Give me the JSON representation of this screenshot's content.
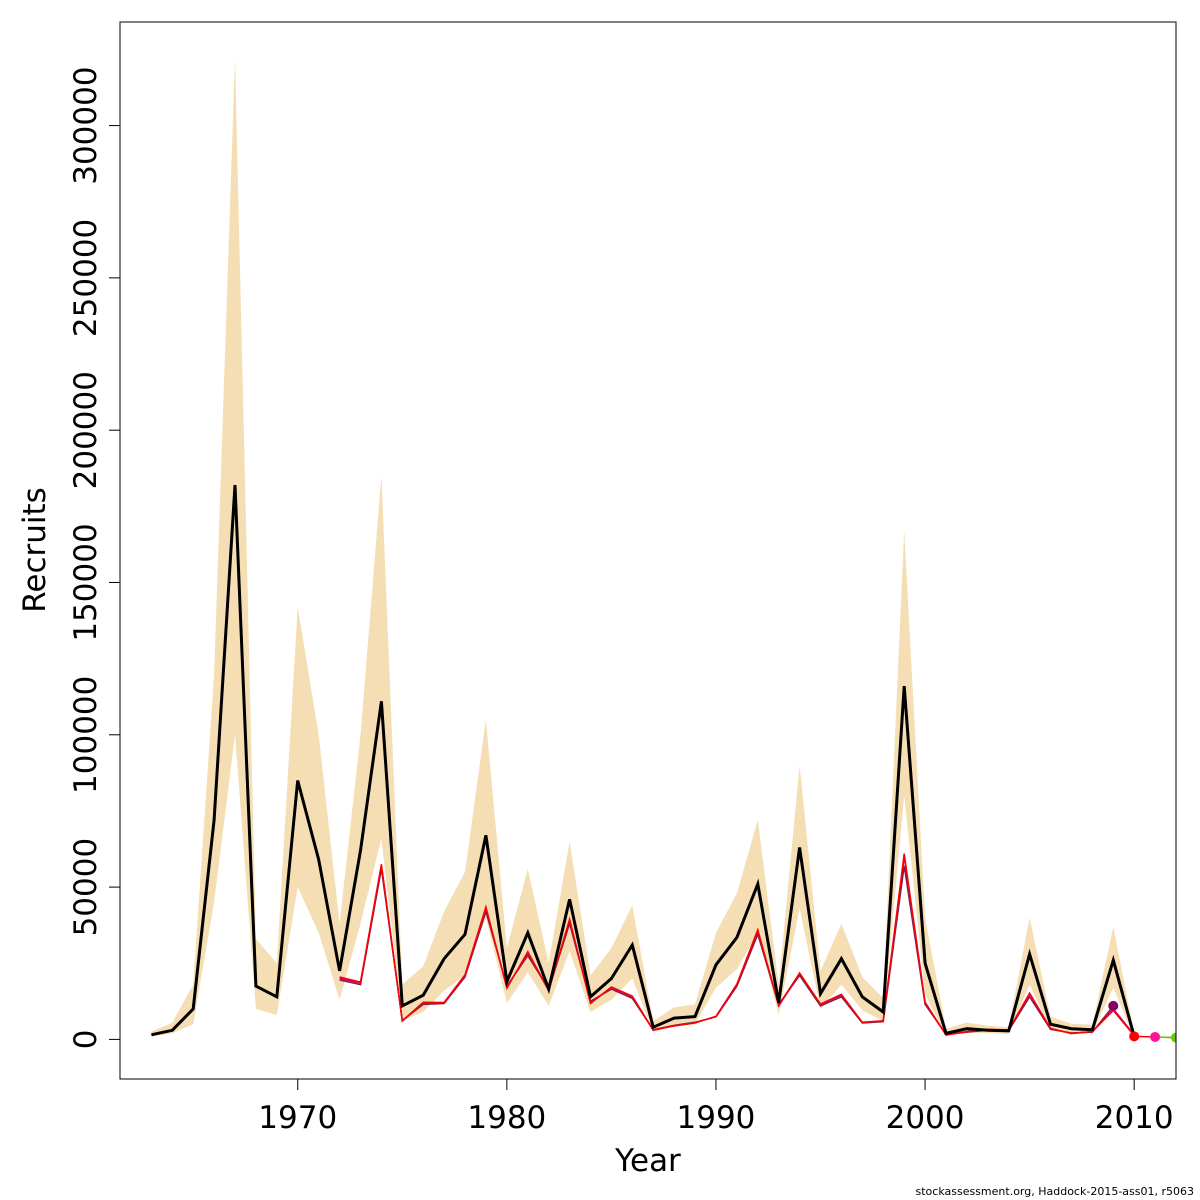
{
  "colors": {
    "ci_band": "#f5deb3",
    "main_line": "#000000",
    "retro_a": "#d1006a",
    "retro_b": "#8b1a4a",
    "retro_c": "#ff0000",
    "dot_2009": "#8b0063",
    "dot_2010": "#ff0000",
    "dot_2011": "#ff1493",
    "dot_2012": "#66cc00"
  },
  "footer": "stockassessment.org, Haddock-2015-ass01, r5063",
  "chart_data": {
    "type": "line",
    "xlabel": "Year",
    "ylabel": "Recruits",
    "xlim": [
      1961.5,
      2012
    ],
    "ylim": [
      -13000,
      334000
    ],
    "x_ticks": [
      1970,
      1980,
      1990,
      2000,
      2010
    ],
    "y_ticks": [
      0,
      50000,
      100000,
      150000,
      200000,
      250000,
      300000
    ],
    "x_tick_labels": [
      "1970",
      "1980",
      "1990",
      "2000",
      "2010"
    ],
    "y_tick_labels": [
      "0",
      "50000",
      "100000",
      "150000",
      "200000",
      "250000",
      "300000"
    ],
    "years": [
      1963,
      1964,
      1965,
      1966,
      1967,
      1968,
      1969,
      1970,
      1971,
      1972,
      1973,
      1974,
      1975,
      1976,
      1977,
      1978,
      1979,
      1980,
      1981,
      1982,
      1983,
      1984,
      1985,
      1986,
      1987,
      1988,
      1989,
      1990,
      1991,
      1992,
      1993,
      1994,
      1995,
      1996,
      1997,
      1998,
      1999,
      2000,
      2001,
      2002,
      2003,
      2004,
      2005,
      2006,
      2007,
      2008,
      2009,
      2010
    ],
    "recruits": [
      1500,
      3000,
      10000,
      72000,
      182000,
      17500,
      14000,
      85000,
      59000,
      22500,
      62000,
      111000,
      11000,
      14500,
      26500,
      34500,
      67000,
      19000,
      35000,
      16500,
      46000,
      14000,
      20000,
      31000,
      4000,
      7000,
      7500,
      24500,
      33500,
      51000,
      12000,
      63000,
      15000,
      26500,
      14000,
      9000,
      116000,
      25000,
      2000,
      3500,
      3000,
      2800,
      28000,
      5000,
      3500,
      3200,
      26000,
      1000
    ],
    "ci_lower": [
      1000,
      2000,
      5000,
      45000,
      100000,
      10000,
      8000,
      50000,
      35000,
      13000,
      38000,
      66000,
      6000,
      9000,
      16000,
      21000,
      40000,
      12000,
      22000,
      11000,
      29000,
      9000,
      13000,
      20000,
      2500,
      4500,
      5000,
      17000,
      23000,
      35000,
      8000,
      43000,
      10000,
      18000,
      9500,
      6000,
      80000,
      15000,
      1000,
      2200,
      2000,
      1800,
      18000,
      3200,
      2200,
      2000,
      17000,
      500
    ],
    "ci_upper": [
      2500,
      5500,
      18000,
      120000,
      322000,
      33000,
      25000,
      142000,
      100000,
      38000,
      100000,
      185000,
      18000,
      24000,
      42000,
      55000,
      105000,
      30000,
      56000,
      25000,
      65000,
      21000,
      30000,
      44000,
      6000,
      10500,
      11500,
      35000,
      48000,
      72000,
      18000,
      90000,
      22500,
      38000,
      20500,
      13500,
      167000,
      40000,
      3500,
      5500,
      4500,
      4000,
      40000,
      7500,
      5200,
      4800,
      37000,
      2000
    ],
    "retro_series": [
      {
        "key": "retro_a",
        "years": [
          1972,
          1973,
          1974,
          1975,
          1976,
          1977,
          1978,
          1979,
          1980,
          1981,
          1982,
          1983,
          1984,
          1985,
          1986,
          1987,
          1988,
          1989,
          1990,
          1991,
          1992,
          1993,
          1994,
          1995,
          1996,
          1997,
          1998,
          1999,
          2000,
          2001,
          2002,
          2003,
          2004,
          2005,
          2006,
          2007,
          2008,
          2009,
          2010
        ],
        "values": [
          20000,
          18500,
          57000,
          6000,
          12000,
          12000,
          21000,
          43000,
          17000,
          28500,
          16000,
          39000,
          12000,
          17000,
          14000,
          3000,
          4500,
          5500,
          7500,
          18000,
          35500,
          11000,
          21500,
          11500,
          14500,
          5500,
          6000,
          60000,
          12000,
          1500,
          2500,
          3200,
          3000,
          15000,
          3500,
          2000,
          2500,
          10000,
          1500
        ]
      },
      {
        "key": "retro_b",
        "years": [
          1972,
          1973,
          1974,
          1975,
          1976,
          1977,
          1978,
          1979,
          1980,
          1981,
          1982,
          1983,
          1984,
          1985,
          1986,
          1987,
          1988,
          1989,
          1990,
          1991,
          1992,
          1993,
          1994,
          1995,
          1996,
          1997,
          1998,
          1999,
          2000,
          2001,
          2002,
          2003,
          2004,
          2005,
          2006,
          2007,
          2008,
          2009
        ],
        "values": [
          19500,
          18000,
          56000,
          6200,
          11500,
          11800,
          20500,
          42000,
          17500,
          27500,
          16500,
          38000,
          12500,
          16500,
          13500,
          3200,
          4600,
          5600,
          7400,
          17500,
          34500,
          11500,
          21000,
          11000,
          14000,
          5400,
          5800,
          57000,
          11500,
          1600,
          2400,
          3000,
          2900,
          14000,
          3300,
          2100,
          2400,
          11000
        ]
      },
      {
        "key": "retro_c",
        "years": [
          1972,
          1973,
          1974,
          1975,
          1976,
          1977,
          1978,
          1979,
          1980,
          1981,
          1982,
          1983,
          1984,
          1985,
          1986,
          1987,
          1988,
          1989,
          1990,
          1991,
          1992,
          1993,
          1994,
          1995,
          1996,
          1997,
          1998,
          1999,
          2000,
          2001,
          2002,
          2003,
          2004,
          2005,
          2006,
          2007,
          2008,
          2009,
          2010
        ],
        "values": [
          20500,
          18800,
          57500,
          6100,
          12200,
          12100,
          21200,
          43500,
          16800,
          28800,
          16200,
          39500,
          11800,
          17200,
          14200,
          3100,
          4400,
          5400,
          7600,
          18200,
          36000,
          11200,
          21800,
          11600,
          14800,
          5600,
          6100,
          61000,
          12200,
          1400,
          2600,
          3300,
          3100,
          15200,
          3600,
          1900,
          2600,
          9500,
          1200
        ]
      },
      {
        "key": "retro_tail",
        "years": [
          2010,
          2011,
          2012
        ],
        "values": [
          1000,
          800,
          600
        ]
      }
    ],
    "terminal_points": [
      {
        "year": 2009,
        "value": 11000,
        "color_key": "dot_2009"
      },
      {
        "year": 2010,
        "value": 1000,
        "color_key": "dot_2010"
      },
      {
        "year": 2011,
        "value": 800,
        "color_key": "dot_2011"
      },
      {
        "year": 2012,
        "value": 600,
        "color_key": "dot_2012"
      }
    ]
  }
}
